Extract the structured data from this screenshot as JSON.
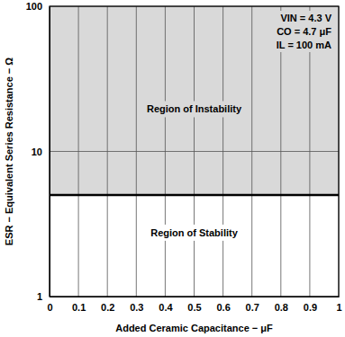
{
  "chart_data": {
    "type": "line",
    "x_label": "Added Ceramic Capacitance − μF",
    "y_label": "ESR − Equivalent Series Resistance − Ω",
    "x": [
      0,
      1
    ],
    "series": [
      {
        "color": "#000000",
        "values": [
          5,
          5
        ]
      }
    ],
    "annotations": [
      "Region of Instability",
      "Region of Stability"
    ],
    "notes": [
      "VIN = 4.3 V",
      "CO = 4.7 μF",
      "IL = 100 mA"
    ],
    "xlim": [
      0,
      1
    ],
    "xticks": [
      0,
      0.1,
      0.2,
      0.3,
      0.4,
      0.5,
      0.6,
      0.7,
      0.8,
      0.9,
      1
    ],
    "ylim": [
      1,
      100
    ],
    "yticks": [
      1,
      10,
      100
    ],
    "log": "y",
    "grid": true
  }
}
